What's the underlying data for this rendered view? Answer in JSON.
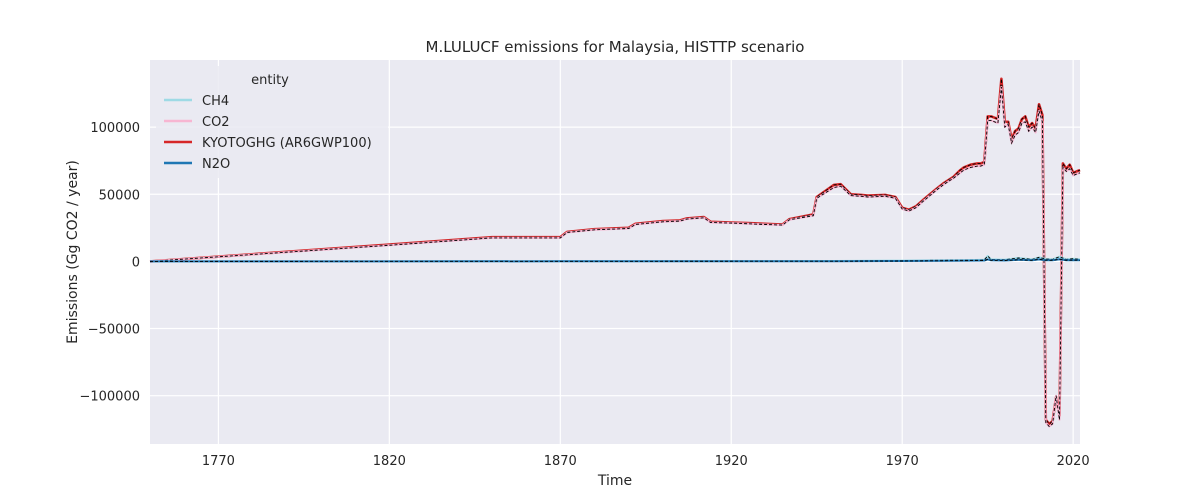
{
  "chart_data": {
    "type": "line",
    "title": "M.LULUCF emissions for Malaysia, HISTTP scenario",
    "xlabel": "Time",
    "ylabel": "Emissions (Gg CO2 / year)",
    "xlim": [
      1750,
      2022
    ],
    "ylim": [
      -136000,
      150000
    ],
    "xticks": [
      1770,
      1820,
      1870,
      1920,
      1970,
      2020
    ],
    "yticks": [
      -100000,
      -50000,
      0,
      50000,
      100000
    ],
    "ytick_labels": [
      "−100000",
      "−50000",
      "0",
      "50000",
      "100000"
    ],
    "grid": true,
    "legend": {
      "title": "entity",
      "placement": "top-left"
    },
    "series": [
      {
        "name": "CH4",
        "color": "#9edae5",
        "x": [
          1750,
          1870,
          1950,
          1970,
          1985,
          1990,
          1994,
          1995,
          1996,
          2000,
          2004,
          2008,
          2010,
          2012,
          2014,
          2016,
          2018,
          2020,
          2022
        ],
        "y": [
          0,
          100,
          300,
          600,
          900,
          1000,
          1200,
          4000,
          1500,
          1300,
          2500,
          1500,
          3000,
          1800,
          1500,
          3500,
          1500,
          2000,
          1500
        ]
      },
      {
        "name": "CO2",
        "color": "#f7b6d2",
        "x": [
          1750,
          1820,
          1850,
          1870,
          1872,
          1880,
          1890,
          1892,
          1900,
          1905,
          1907,
          1912,
          1914,
          1920,
          1925,
          1930,
          1935,
          1937,
          1944,
          1945,
          1950,
          1952,
          1955,
          1958,
          1960,
          1965,
          1968,
          1970,
          1972,
          1974,
          1976,
          1980,
          1982,
          1985,
          1987,
          1988,
          1990,
          1992,
          1993,
          1994,
          1995,
          1996,
          1997,
          1998,
          1999,
          2000,
          2001,
          2002,
          2003,
          2004,
          2005,
          2006,
          2007,
          2008,
          2009,
          2010,
          2011,
          2012,
          2013,
          2014,
          2015,
          2016,
          2017,
          2018,
          2019,
          2020,
          2021,
          2022
        ],
        "y": [
          0,
          12000,
          17500,
          17500,
          21500,
          23500,
          24500,
          27500,
          29500,
          30000,
          31500,
          32500,
          29000,
          28500,
          28000,
          27500,
          27000,
          31000,
          34000,
          47000,
          55000,
          56000,
          49000,
          48500,
          48000,
          48500,
          47000,
          39000,
          37500,
          40000,
          44500,
          53000,
          57000,
          62000,
          66000,
          68000,
          70000,
          71000,
          71000,
          72000,
          105000,
          105000,
          104000,
          103000,
          130000,
          100000,
          102000,
          88000,
          94000,
          96000,
          103000,
          104000,
          97000,
          100000,
          96000,
          112000,
          104000,
          -120000,
          -123000,
          -121000,
          -100000,
          -118000,
          70000,
          67000,
          69000,
          64000,
          65000,
          66000
        ]
      },
      {
        "name": "KYOTOGHG (AR6GWP100)",
        "color": "#d62728",
        "x": [
          1750,
          1820,
          1850,
          1870,
          1872,
          1880,
          1890,
          1892,
          1900,
          1905,
          1907,
          1912,
          1914,
          1920,
          1925,
          1930,
          1935,
          1937,
          1944,
          1945,
          1950,
          1952,
          1955,
          1958,
          1960,
          1965,
          1968,
          1970,
          1972,
          1974,
          1976,
          1980,
          1982,
          1985,
          1987,
          1988,
          1990,
          1992,
          1993,
          1994,
          1995,
          1996,
          1997,
          1998,
          1999,
          2000,
          2001,
          2002,
          2003,
          2004,
          2005,
          2006,
          2007,
          2008,
          2009,
          2010,
          2011,
          2012,
          2013,
          2014,
          2015,
          2016,
          2017,
          2018,
          2019,
          2020,
          2021,
          2022
        ],
        "y": [
          0,
          12500,
          18000,
          18000,
          22000,
          24000,
          25000,
          28000,
          30000,
          30500,
          32000,
          33000,
          29500,
          29000,
          28500,
          28000,
          27500,
          31500,
          35000,
          48000,
          57000,
          57500,
          50000,
          49500,
          49000,
          49500,
          48000,
          40000,
          38500,
          41000,
          45500,
          54000,
          58000,
          63000,
          68000,
          70000,
          72000,
          73000,
          73000,
          74000,
          108000,
          108000,
          107000,
          106000,
          136000,
          104000,
          104000,
          91000,
          97000,
          99000,
          106000,
          108000,
          100000,
          103000,
          99000,
          117000,
          109000,
          -118000,
          -121000,
          -119000,
          -101000,
          -115000,
          73000,
          69000,
          72000,
          66000,
          67000,
          68000
        ]
      },
      {
        "name": "N2O",
        "color": "#1f77b4",
        "x": [
          1750,
          1870,
          1950,
          1970,
          1985,
          1990,
          1994,
          1995,
          1996,
          2000,
          2004,
          2008,
          2010,
          2012,
          2014,
          2016,
          2018,
          2020,
          2022
        ],
        "y": [
          0,
          50,
          150,
          300,
          500,
          600,
          700,
          1500,
          800,
          700,
          1200,
          800,
          1500,
          900,
          800,
          1600,
          800,
          1000,
          800
        ]
      }
    ]
  }
}
